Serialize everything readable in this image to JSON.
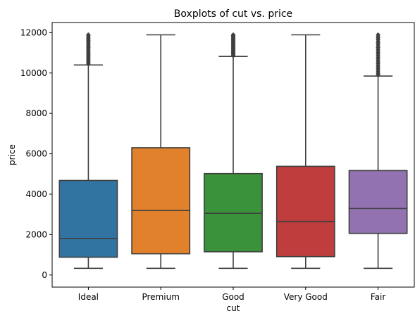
{
  "chart_data": {
    "type": "boxplot",
    "title": "Boxplots of cut vs. price",
    "xlabel": "cut",
    "ylabel": "price",
    "ylim": [
      -600,
      12500
    ],
    "yticks": [
      0,
      2000,
      4000,
      6000,
      8000,
      10000,
      12000
    ],
    "categories": [
      "Ideal",
      "Premium",
      "Good",
      "Very Good",
      "Fair"
    ],
    "colors": [
      "#3274a1",
      "#e1812c",
      "#3a923a",
      "#c03d3e",
      "#9372b2"
    ],
    "boxes": [
      {
        "category": "Ideal",
        "whisker_low": 330,
        "q1": 880,
        "median": 1810,
        "q3": 4680,
        "whisker_high": 10400,
        "outlier_range": [
          10450,
          11900
        ]
      },
      {
        "category": "Premium",
        "whisker_low": 330,
        "q1": 1050,
        "median": 3190,
        "q3": 6300,
        "whisker_high": 11890,
        "outlier_range": null
      },
      {
        "category": "Good",
        "whisker_low": 330,
        "q1": 1150,
        "median": 3050,
        "q3": 5020,
        "whisker_high": 10820,
        "outlier_range": [
          10850,
          11900
        ]
      },
      {
        "category": "Very Good",
        "whisker_low": 330,
        "q1": 910,
        "median": 2650,
        "q3": 5380,
        "whisker_high": 11890,
        "outlier_range": null
      },
      {
        "category": "Fair",
        "whisker_low": 330,
        "q1": 2060,
        "median": 3290,
        "q3": 5170,
        "whisker_high": 9850,
        "outlier_range": [
          9900,
          11900
        ]
      }
    ],
    "grid": false,
    "legend": "none"
  }
}
